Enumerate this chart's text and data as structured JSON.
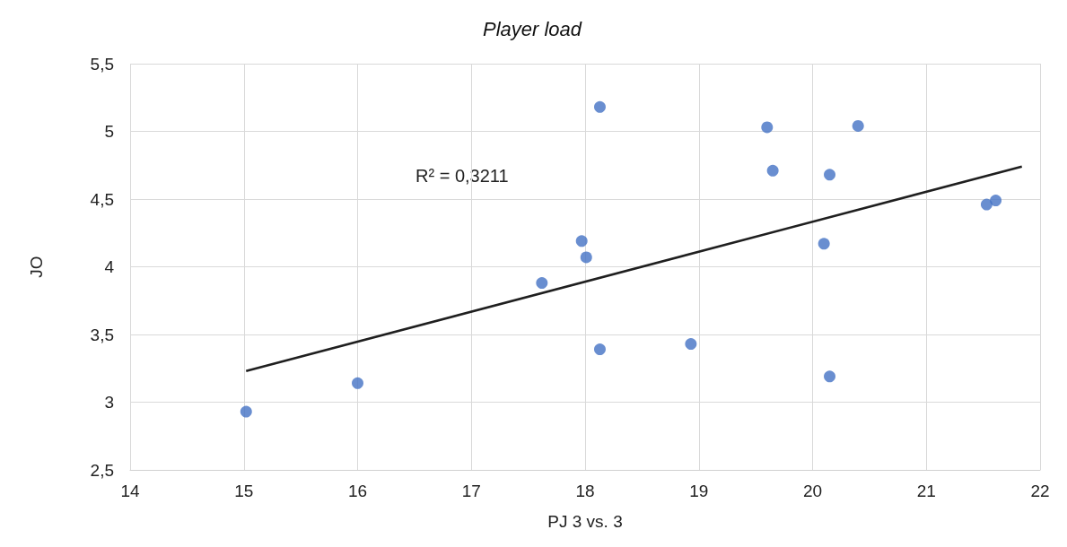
{
  "chart_data": {
    "type": "scatter",
    "title": "Player load",
    "xlabel": "PJ 3 vs. 3",
    "ylabel": "JO",
    "annotations": [
      "R² = 0,3211"
    ],
    "series": [
      {
        "color": "#4472c4",
        "marker": "circle",
        "x": [
          15.02,
          16.0,
          17.62,
          17.97,
          18.01,
          18.13,
          18.13,
          18.93,
          19.6,
          19.65,
          20.1,
          20.15,
          20.15,
          20.4,
          21.53,
          21.61
        ],
        "values": [
          2.93,
          3.14,
          3.88,
          4.19,
          4.07,
          5.18,
          3.39,
          3.43,
          5.03,
          4.71,
          4.17,
          4.68,
          3.19,
          5.04,
          4.46,
          4.49
        ]
      },
      {
        "type": "line",
        "marker": "none",
        "color": "#1f1f1f",
        "x": [
          15.02,
          21.84
        ],
        "values": [
          3.23,
          4.74
        ]
      }
    ],
    "xlim": [
      14,
      22
    ],
    "xticks": [
      14,
      15,
      16,
      17,
      18,
      19,
      20,
      21,
      22
    ],
    "ylim": [
      2.5,
      5.5
    ],
    "yticks": [
      {
        "value": 2.5,
        "label": "2,5"
      },
      3,
      {
        "value": 3.5,
        "label": "3,5"
      },
      4,
      {
        "value": 4.5,
        "label": "4,5"
      },
      5,
      {
        "value": 5.5,
        "label": "5,5"
      }
    ],
    "grid": true
  }
}
